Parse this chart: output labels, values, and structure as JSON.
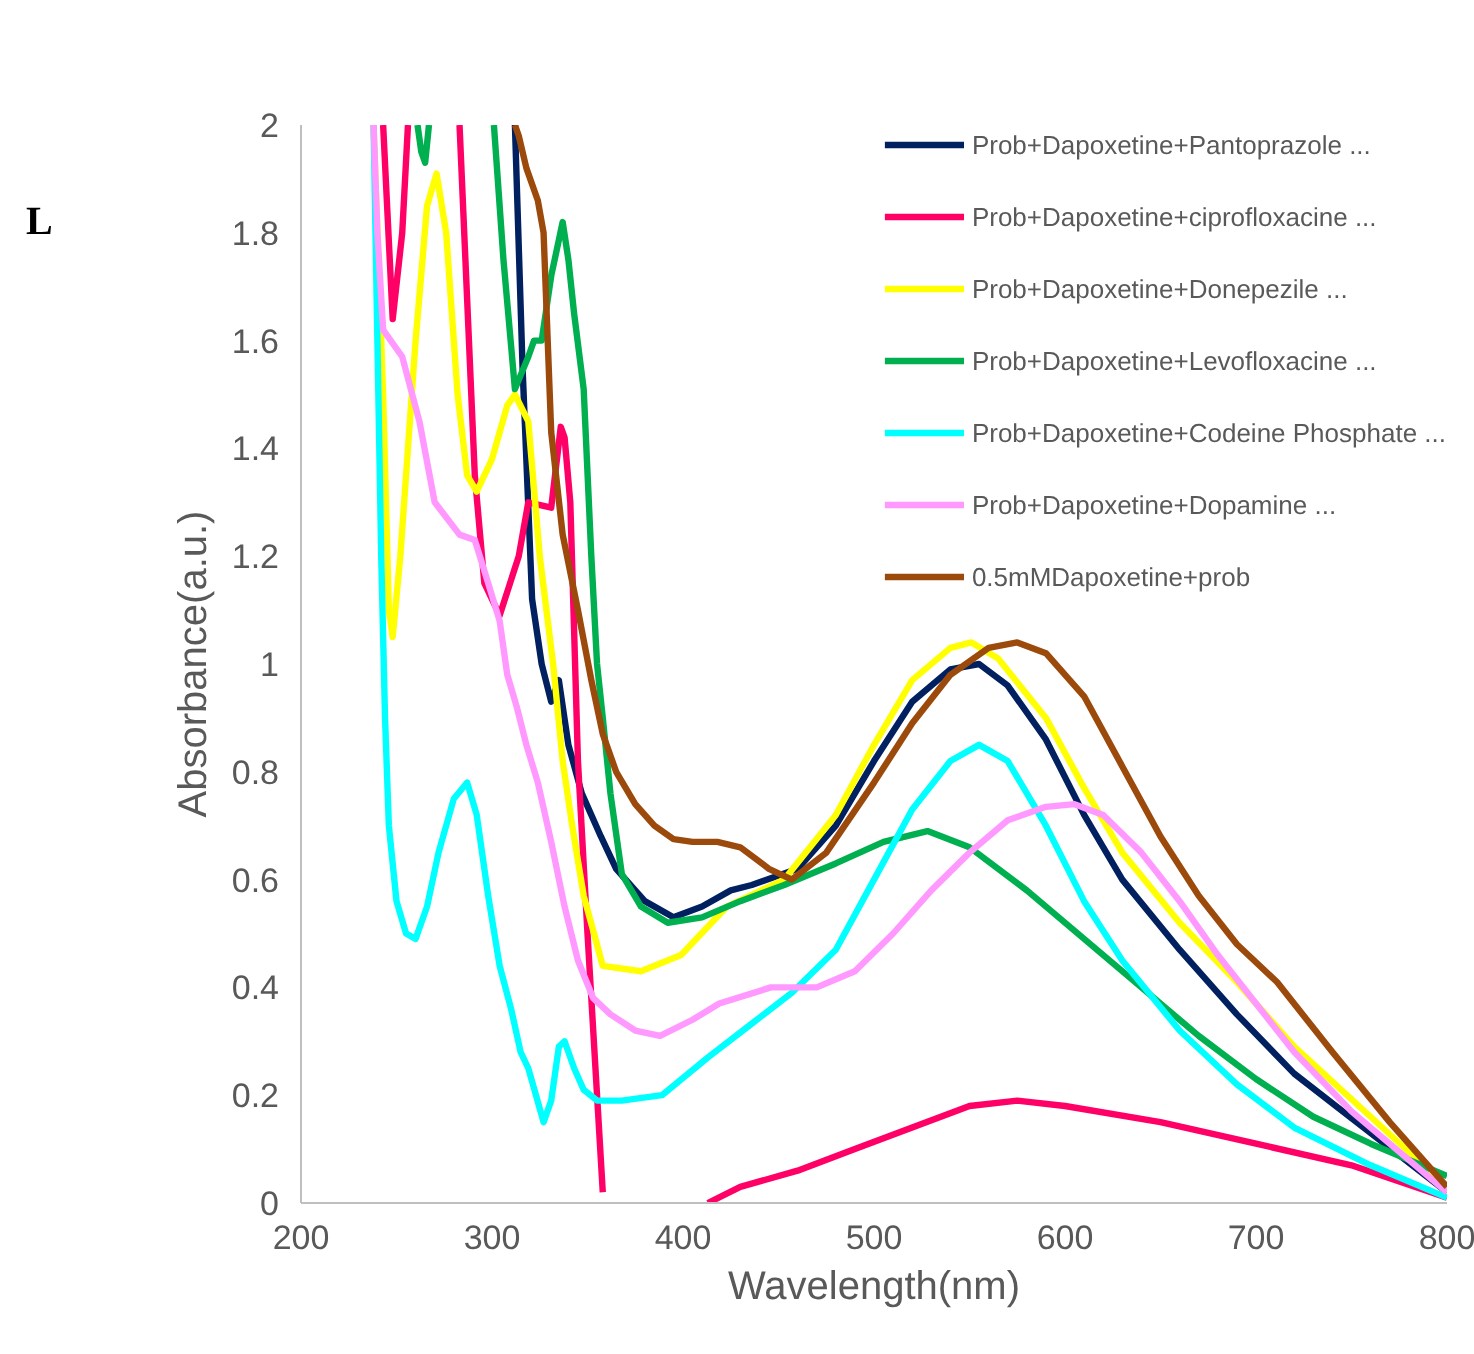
{
  "chart_data": {
    "type": "line",
    "xlabel": "Wavelength(nm)",
    "ylabel": "Absorbance(a.u.)",
    "annotations": [
      "L"
    ],
    "xlim": [
      200,
      800
    ],
    "xticks": [
      200,
      300,
      400,
      500,
      600,
      700,
      800
    ],
    "ylim": [
      0,
      2
    ],
    "yticks": [
      0,
      0.2,
      0.4,
      0.6,
      0.8,
      1,
      1.2,
      1.4,
      1.6,
      1.8,
      2
    ],
    "grid": false,
    "legend": "top right",
    "line_style": "solid",
    "marker": "none",
    "series": [
      {
        "name": "Prob+Dapoxetine+Pantoprazole ...",
        "color": "#002060",
        "x": [
          312,
          316,
          321,
          326,
          331,
          335,
          340,
          347,
          357,
          365,
          380,
          395,
          410,
          425,
          436,
          460,
          480,
          500,
          520,
          540,
          555,
          570,
          590,
          610,
          630,
          660,
          690,
          720,
          760,
          800
        ],
        "values": [
          2.0,
          1.55,
          1.12,
          1.0,
          0.93,
          0.97,
          0.85,
          0.76,
          0.68,
          0.62,
          0.56,
          0.53,
          0.55,
          0.58,
          0.59,
          0.62,
          0.7,
          0.82,
          0.93,
          0.99,
          1.0,
          0.96,
          0.86,
          0.72,
          0.6,
          0.47,
          0.35,
          0.24,
          0.13,
          0.02
        ]
      },
      {
        "name": "Prob+Dapoxetine+ciprofloxacine ...",
        "color": "#ff0066",
        "x": [
          243,
          248,
          253,
          256,
          270,
          283,
          291,
          296,
          304,
          314,
          319,
          331,
          336,
          338,
          341,
          345,
          350,
          355,
          358,
          390,
          413,
          430,
          460,
          490,
          520,
          550,
          575,
          600,
          650,
          700,
          750,
          800
        ],
        "values": [
          2.0,
          1.64,
          1.8,
          2.0,
          null,
          2.0,
          1.35,
          1.15,
          1.09,
          1.2,
          1.3,
          1.29,
          1.44,
          1.42,
          1.3,
          0.82,
          0.5,
          0.2,
          0.02,
          null,
          0.0,
          0.03,
          0.06,
          0.1,
          0.14,
          0.18,
          0.19,
          0.18,
          0.15,
          0.11,
          0.07,
          0.01
        ]
      },
      {
        "name": "Prob+Dapoxetine+Donepezile ...",
        "color": "#ffff00",
        "x": [
          238,
          243,
          246,
          248,
          252,
          260,
          266,
          271,
          276,
          282,
          287,
          292,
          300,
          308,
          312,
          319,
          325,
          332,
          337,
          342,
          348,
          358,
          378,
          399,
          423,
          453,
          480,
          500,
          520,
          540,
          551,
          565,
          590,
          610,
          630,
          660,
          690,
          720,
          760,
          800
        ],
        "values": [
          2.0,
          1.5,
          1.1,
          1.05,
          1.2,
          1.6,
          1.85,
          1.91,
          1.8,
          1.5,
          1.35,
          1.32,
          1.38,
          1.48,
          1.5,
          1.45,
          1.2,
          1.0,
          0.82,
          0.7,
          0.57,
          0.44,
          0.43,
          0.46,
          0.55,
          0.6,
          0.72,
          0.85,
          0.97,
          1.03,
          1.04,
          1.01,
          0.9,
          0.77,
          0.65,
          0.52,
          0.41,
          0.29,
          0.16,
          0.03
        ]
      },
      {
        "name": "Prob+Dapoxetine+Levofloxacine ...",
        "color": "#00b050",
        "x": [
          261,
          263,
          265,
          267,
          285,
          301,
          306,
          312,
          319,
          322,
          326,
          331,
          337,
          340,
          343,
          348,
          352,
          355,
          358,
          362,
          368,
          378,
          392,
          410,
          430,
          453,
          480,
          505,
          528,
          550,
          580,
          610,
          640,
          670,
          700,
          730,
          760,
          800
        ],
        "values": [
          2.0,
          1.95,
          1.93,
          2.0,
          null,
          2.0,
          1.75,
          1.51,
          1.57,
          1.6,
          1.6,
          1.72,
          1.82,
          1.75,
          1.65,
          1.51,
          1.2,
          1.0,
          0.9,
          0.76,
          0.61,
          0.55,
          0.52,
          0.53,
          0.56,
          0.59,
          0.63,
          0.67,
          0.69,
          0.66,
          0.58,
          0.49,
          0.4,
          0.31,
          0.23,
          0.16,
          0.11,
          0.05
        ]
      },
      {
        "name": "Prob+Dapoxetine+Codeine Phosphate ...",
        "color": "#00ffff",
        "x": [
          238,
          240,
          242,
          244,
          246,
          250,
          255,
          260,
          266,
          272,
          280,
          287,
          292,
          298,
          304,
          310,
          315,
          319,
          323,
          327,
          331,
          335,
          338,
          343,
          348,
          355,
          368,
          389,
          413,
          435,
          457,
          480,
          500,
          520,
          540,
          555,
          570,
          590,
          610,
          630,
          660,
          690,
          720,
          760,
          800
        ],
        "values": [
          2.0,
          1.6,
          1.2,
          0.9,
          0.7,
          0.56,
          0.5,
          0.49,
          0.55,
          0.65,
          0.75,
          0.78,
          0.72,
          0.57,
          0.44,
          0.36,
          0.28,
          0.25,
          0.2,
          0.15,
          0.19,
          0.29,
          0.3,
          0.25,
          0.21,
          0.19,
          0.19,
          0.2,
          0.27,
          0.33,
          0.39,
          0.47,
          0.6,
          0.73,
          0.82,
          0.85,
          0.82,
          0.7,
          0.56,
          0.45,
          0.32,
          0.22,
          0.14,
          0.07,
          0.01
        ]
      },
      {
        "name": "Prob+Dapoxetine+Dopamine ...",
        "color": "#ff99ff",
        "x": [
          238,
          240,
          243,
          253,
          262,
          270,
          283,
          291,
          298,
          304,
          308,
          313,
          318,
          324,
          331,
          338,
          345,
          353,
          362,
          375,
          388,
          405,
          419,
          446,
          470,
          490,
          510,
          530,
          550,
          570,
          590,
          605,
          620,
          640,
          660,
          680,
          700,
          720,
          750,
          780,
          800
        ],
        "values": [
          2.0,
          1.8,
          1.62,
          1.57,
          1.45,
          1.3,
          1.24,
          1.23,
          1.15,
          1.08,
          0.98,
          0.92,
          0.85,
          0.78,
          0.67,
          0.55,
          0.45,
          0.38,
          0.35,
          0.32,
          0.31,
          0.34,
          0.37,
          0.4,
          0.4,
          0.43,
          0.5,
          0.58,
          0.65,
          0.71,
          0.735,
          0.74,
          0.72,
          0.65,
          0.56,
          0.46,
          0.37,
          0.28,
          0.17,
          0.08,
          0.02
        ]
      },
      {
        "name": "0.5mMDapoxetine+prob",
        "color": "#9c4a0c",
        "x": [
          312,
          314,
          318,
          324,
          327,
          331,
          337,
          345,
          352,
          358,
          365,
          375,
          385,
          395,
          405,
          418,
          430,
          445,
          457,
          475,
          500,
          520,
          540,
          560,
          575,
          590,
          610,
          630,
          650,
          670,
          690,
          711,
          740,
          770,
          800
        ],
        "values": [
          2.0,
          1.98,
          1.92,
          1.86,
          1.8,
          1.43,
          1.24,
          1.1,
          0.97,
          0.87,
          0.8,
          0.74,
          0.7,
          0.675,
          0.67,
          0.67,
          0.66,
          0.62,
          0.6,
          0.65,
          0.78,
          0.89,
          0.98,
          1.03,
          1.04,
          1.02,
          0.94,
          0.81,
          0.68,
          0.57,
          0.48,
          0.41,
          0.28,
          0.15,
          0.03
        ]
      }
    ]
  }
}
